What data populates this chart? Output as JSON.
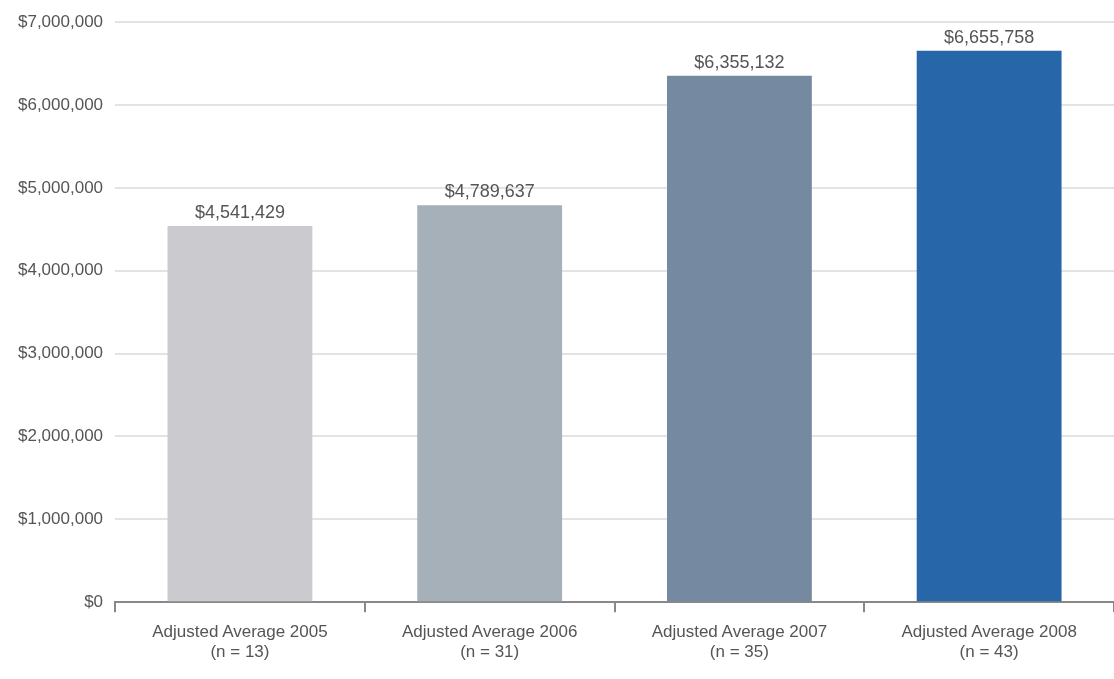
{
  "chart_data": {
    "type": "bar",
    "categories": [
      "Adjusted Average 2005\n(n = 13)",
      "Adjusted Average 2006\n(n = 31)",
      "Adjusted Average 2007\n(n = 35)",
      "Adjusted Average 2008\n(n = 43)"
    ],
    "values": [
      4541429,
      4789637,
      6355132,
      6655758
    ],
    "colors": [
      "#cbcbcf",
      "#a5b0b8",
      "#7589a0",
      "#2766a8"
    ],
    "value_labels": [
      "$4,541,429",
      "$4,789,637",
      "$6,355,132",
      "$6,655,758"
    ],
    "ylim": [
      0,
      7000000
    ],
    "yticks": [
      {
        "value": 0,
        "label": "$0"
      },
      {
        "value": 1000000,
        "label": "$1,000,000"
      },
      {
        "value": 2000000,
        "label": "$2,000,000"
      },
      {
        "value": 3000000,
        "label": "$3,000,000"
      },
      {
        "value": 4000000,
        "label": "$4,000,000"
      },
      {
        "value": 5000000,
        "label": "$5,000,000"
      },
      {
        "value": 6000000,
        "label": "$6,000,000"
      },
      {
        "value": 7000000,
        "label": "$7,000,000"
      }
    ],
    "grid": "y",
    "legend": false
  }
}
